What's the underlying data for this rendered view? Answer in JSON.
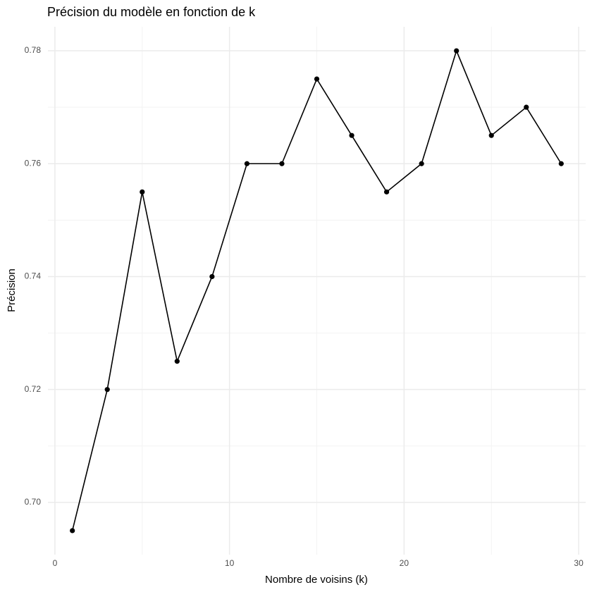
{
  "chart_data": {
    "type": "line",
    "title": "Précision du modèle en fonction de k",
    "x_label": "Nombre de voisins (k)",
    "y_label": "Précision",
    "x": [
      1,
      3,
      5,
      7,
      9,
      11,
      13,
      15,
      17,
      19,
      21,
      23,
      25,
      27,
      29
    ],
    "series": [
      {
        "name": "Précision",
        "color": "#000000",
        "values": [
          0.695,
          0.72,
          0.755,
          0.725,
          0.74,
          0.76,
          0.76,
          0.775,
          0.765,
          0.755,
          0.76,
          0.78,
          0.765,
          0.77,
          0.76
        ]
      }
    ],
    "xlim": [
      -0.4,
      30.4
    ],
    "ylim": [
      0.69075,
      0.78425
    ],
    "xticks": [
      0,
      10,
      20,
      30
    ],
    "yticks": [
      {
        "value": 0.7,
        "label": "0.70"
      },
      {
        "value": 0.72,
        "label": "0.72"
      },
      {
        "value": 0.74,
        "label": "0.74"
      },
      {
        "value": 0.76,
        "label": "0.76"
      },
      {
        "value": 0.78,
        "label": "0.78"
      }
    ],
    "xminor": [
      5,
      15,
      25
    ],
    "yminor": [
      0.71,
      0.73,
      0.75,
      0.77
    ],
    "grid": true,
    "markers": true
  }
}
